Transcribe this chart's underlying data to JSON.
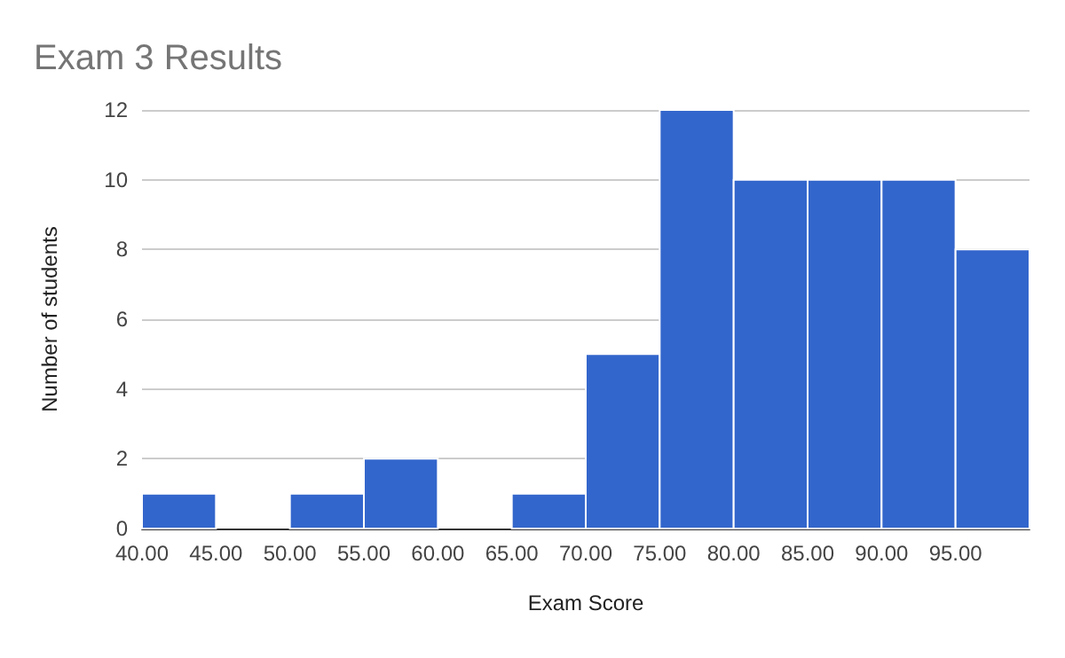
{
  "chart_data": {
    "type": "histogram",
    "title": "Exam 3 Results",
    "xlabel": "Exam Score",
    "ylabel": "Number of students",
    "bins": [
      40,
      45,
      50,
      55,
      60,
      65,
      70,
      75,
      80,
      85,
      90,
      95,
      100
    ],
    "values": [
      1,
      0,
      1,
      2,
      0,
      1,
      5,
      12,
      10,
      10,
      10,
      8
    ],
    "color": "#3366cc",
    "xlim": [
      40,
      100
    ],
    "xticks": [
      {
        "value": 40,
        "label": "40.00"
      },
      {
        "value": 45,
        "label": "45.00"
      },
      {
        "value": 50,
        "label": "50.00"
      },
      {
        "value": 55,
        "label": "55.00"
      },
      {
        "value": 60,
        "label": "60.00"
      },
      {
        "value": 65,
        "label": "65.00"
      },
      {
        "value": 70,
        "label": "70.00"
      },
      {
        "value": 75,
        "label": "75.00"
      },
      {
        "value": 80,
        "label": "80.00"
      },
      {
        "value": 85,
        "label": "85.00"
      },
      {
        "value": 90,
        "label": "90.00"
      },
      {
        "value": 95,
        "label": "95.00"
      }
    ],
    "ylim": [
      0,
      12
    ],
    "yticks": [
      0,
      2,
      4,
      6,
      8,
      10,
      12
    ],
    "grid": "y"
  }
}
